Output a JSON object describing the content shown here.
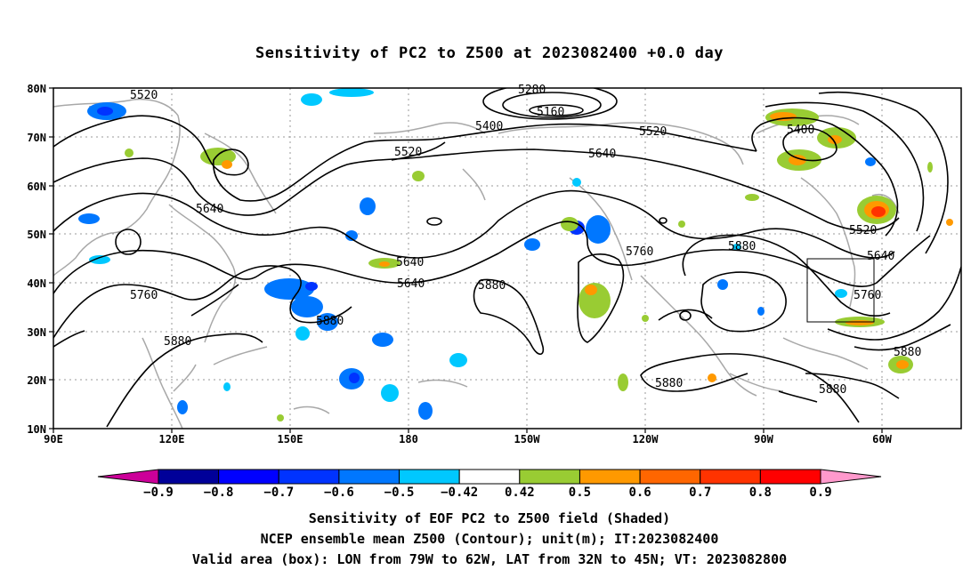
{
  "title": "Sensitivity of PC2 to Z500 at 2023082400 +0.0 day",
  "map": {
    "lat_labels": [
      "80N",
      "70N",
      "60N",
      "50N",
      "40N",
      "30N",
      "20N",
      "10N"
    ],
    "lon_labels": [
      "90E",
      "120E",
      "150E",
      "180",
      "150W",
      "120W",
      "90W",
      "60W"
    ],
    "grid": "dotted",
    "contour_labels": [
      "5520",
      "5280",
      "5160",
      "5400",
      "5520",
      "5400",
      "5640",
      "5520",
      "5640",
      "5520",
      "5640",
      "5640",
      "5760",
      "5880",
      "5760",
      "5880",
      "5640",
      "5760",
      "5880",
      "5880",
      "5880",
      "5880",
      "5880"
    ],
    "valid_box": {
      "lon_min": "79W",
      "lon_max": "62W",
      "lat_min": "32N",
      "lat_max": "45N"
    }
  },
  "colorbar": {
    "labels": [
      "-0.9",
      "-0.8",
      "-0.7",
      "-0.6",
      "-0.5",
      "-0.42",
      "0.42",
      "0.5",
      "0.6",
      "0.7",
      "0.8",
      "0.9"
    ],
    "colors": [
      "#000099",
      "#0000ff",
      "#0033ff",
      "#0077ff",
      "#00c8ff",
      "#ffffff",
      "#99cc33",
      "#ff9900",
      "#ff6600",
      "#ff3300",
      "#ff0000"
    ],
    "low_extend_color": "#cc0099",
    "high_extend_color": "#ff99cc"
  },
  "captions": {
    "line1": "Sensitivity of EOF PC2 to Z500 field (Shaded)",
    "line2": "NCEP ensemble mean Z500 (Contour); unit(m); IT:2023082400",
    "line3": "Valid area (box): LON from 79W to 62W, LAT from 32N to 45N; VT: 2023082800"
  }
}
